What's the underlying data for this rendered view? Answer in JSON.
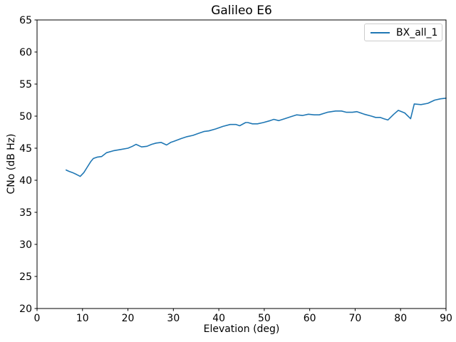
{
  "chart_data": {
    "type": "line",
    "title": "Galileo E6",
    "xlabel": "Elevation (deg)",
    "ylabel": "CNo (dB Hz)",
    "xlim": [
      0,
      90
    ],
    "ylim": [
      20,
      65
    ],
    "xticks": [
      0,
      10,
      20,
      30,
      40,
      50,
      60,
      70,
      80,
      90
    ],
    "yticks": [
      20,
      25,
      30,
      35,
      40,
      45,
      50,
      55,
      60,
      65
    ],
    "grid": false,
    "legend_position": "upper right",
    "series": [
      {
        "name": "BX_all_1",
        "color": "#1f77b4",
        "x": [
          6.4,
          7.0,
          7.8,
          8.7,
          9.5,
          10.3,
          11.0,
          11.8,
          12.4,
          13.2,
          14.2,
          15.3,
          16.8,
          18.4,
          20.0,
          21.0,
          21.8,
          23.0,
          24.2,
          25.2,
          26.2,
          27.3,
          28.5,
          29.4,
          30.2,
          31.7,
          33.0,
          34.3,
          35.5,
          36.7,
          37.8,
          39.3,
          40.9,
          42.5,
          43.8,
          44.6,
          45.9,
          46.4,
          47.4,
          48.5,
          49.8,
          51.3,
          52.1,
          53.2,
          54.5,
          55.8,
          57.1,
          58.4,
          59.7,
          61.0,
          62.1,
          63.9,
          65.7,
          67.0,
          68.1,
          69.4,
          70.4,
          72.0,
          73.6,
          74.5,
          75.5,
          76.3,
          77.2,
          78.5,
          79.5,
          80.9,
          82.2,
          83.0,
          84.5,
          86.0,
          87.5,
          88.8,
          90.0
        ],
        "y": [
          41.6,
          41.4,
          41.2,
          40.9,
          40.6,
          41.2,
          42.0,
          42.9,
          43.4,
          43.6,
          43.7,
          44.3,
          44.6,
          44.8,
          45.0,
          45.3,
          45.6,
          45.2,
          45.3,
          45.6,
          45.8,
          45.9,
          45.5,
          45.9,
          46.1,
          46.5,
          46.8,
          47.0,
          47.3,
          47.6,
          47.7,
          48.0,
          48.4,
          48.7,
          48.7,
          48.5,
          49.0,
          49.0,
          48.8,
          48.8,
          49.0,
          49.3,
          49.5,
          49.3,
          49.6,
          49.9,
          50.2,
          50.1,
          50.3,
          50.2,
          50.2,
          50.6,
          50.8,
          50.8,
          50.6,
          50.6,
          50.7,
          50.3,
          50.0,
          49.8,
          49.8,
          49.6,
          49.4,
          50.3,
          50.9,
          50.5,
          49.6,
          51.9,
          51.8,
          52.0,
          52.5,
          52.7,
          52.8
        ]
      }
    ],
    "colors": {
      "line": "#1f77b4",
      "axes": "#000000",
      "text": "#000000",
      "legend_border": "#cccccc",
      "background": "#ffffff"
    }
  }
}
